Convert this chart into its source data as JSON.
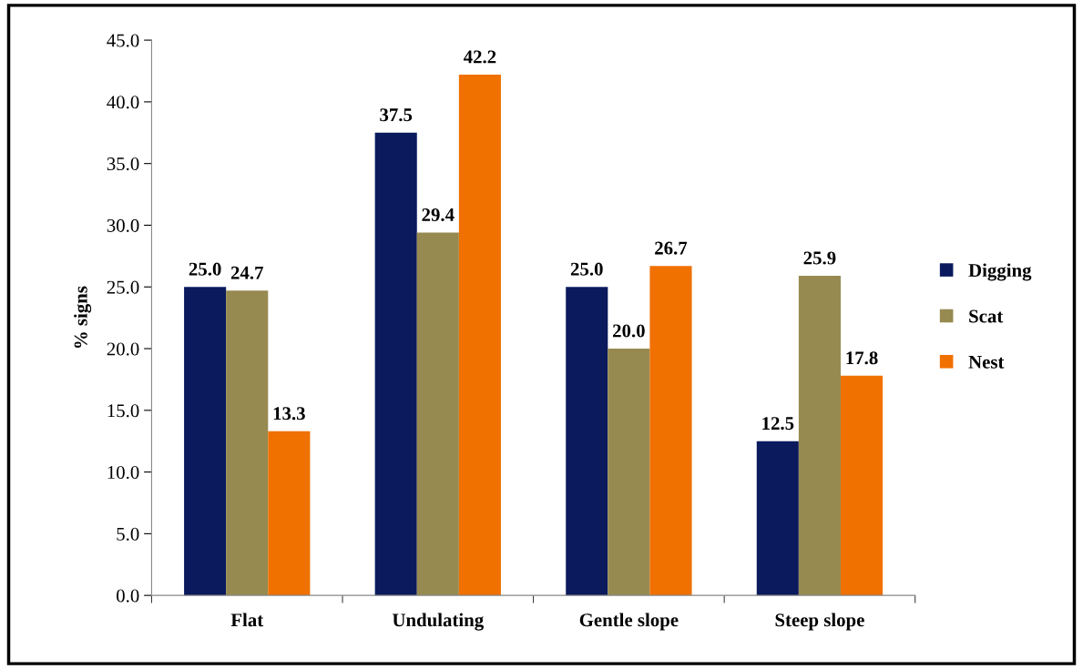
{
  "chart_data": {
    "type": "bar",
    "ylabel": "% signs",
    "categories": [
      "Flat",
      "Undulating",
      "Gentle slope",
      "Steep slope"
    ],
    "series": [
      {
        "name": "Digging",
        "color": "#0a1a5c",
        "values": [
          25.0,
          37.5,
          25.0,
          12.5
        ],
        "value_labels": [
          "25.0",
          "37.5",
          "25.0",
          "12.5"
        ]
      },
      {
        "name": "Scat",
        "color": "#968a50",
        "values": [
          24.7,
          29.4,
          20.0,
          25.9
        ],
        "value_labels": [
          "24.7",
          "29.4",
          "20.0",
          "25.9"
        ]
      },
      {
        "name": "Nest",
        "color": "#f07000",
        "values": [
          13.3,
          42.2,
          26.7,
          17.8
        ],
        "value_labels": [
          "13.3",
          "42.2",
          "26.7",
          "17.8"
        ]
      }
    ],
    "ylim": [
      0,
      45
    ],
    "yticks": [
      {
        "value": 0,
        "label": "0.0"
      },
      {
        "value": 5,
        "label": "5.0"
      },
      {
        "value": 10,
        "label": "10.0"
      },
      {
        "value": 15,
        "label": "15.0"
      },
      {
        "value": 20,
        "label": "20.0"
      },
      {
        "value": 25,
        "label": "25.0"
      },
      {
        "value": 30,
        "label": "30.0"
      },
      {
        "value": 35,
        "label": "35.0"
      },
      {
        "value": 40,
        "label": "40.0"
      },
      {
        "value": 45,
        "label": "45.0"
      }
    ],
    "grid": false,
    "legend": "right"
  }
}
